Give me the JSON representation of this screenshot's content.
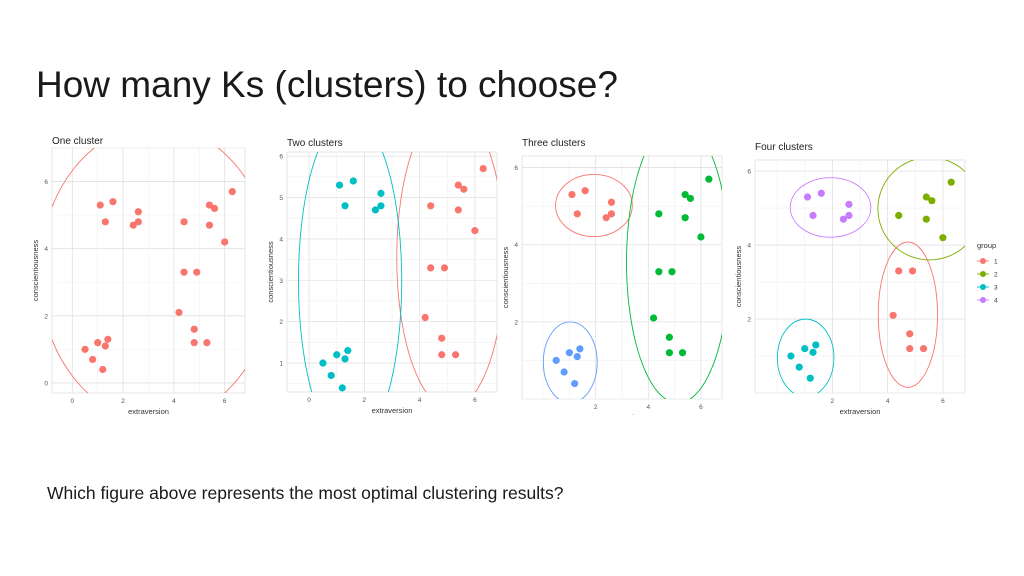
{
  "slide": {
    "title": "How many Ks (clusters) to choose?",
    "question": "Which figure above represents the most optimal clustering results?"
  },
  "chart_data": [
    {
      "type": "scatter",
      "title": "One cluster",
      "xlabel": "extraversion",
      "ylabel": "conscientiousness",
      "xlim": [
        -0.8,
        6.8
      ],
      "ylim": [
        -0.3,
        7.0
      ],
      "xticks": [
        0,
        2,
        4,
        6
      ],
      "yticks": [
        0,
        2,
        4,
        6
      ],
      "legend": false,
      "points": [
        {
          "x": 0.5,
          "y": 1.0,
          "group": 1
        },
        {
          "x": 0.8,
          "y": 0.7,
          "group": 1
        },
        {
          "x": 1.0,
          "y": 1.2,
          "group": 1
        },
        {
          "x": 1.2,
          "y": 0.4,
          "group": 1
        },
        {
          "x": 1.3,
          "y": 1.1,
          "group": 1
        },
        {
          "x": 1.4,
          "y": 1.3,
          "group": 1
        },
        {
          "x": 1.1,
          "y": 5.3,
          "group": 1
        },
        {
          "x": 1.3,
          "y": 4.8,
          "group": 1
        },
        {
          "x": 1.6,
          "y": 5.4,
          "group": 1
        },
        {
          "x": 2.4,
          "y": 4.7,
          "group": 1
        },
        {
          "x": 2.6,
          "y": 5.1,
          "group": 1
        },
        {
          "x": 2.6,
          "y": 4.8,
          "group": 1
        },
        {
          "x": 4.2,
          "y": 2.1,
          "group": 1
        },
        {
          "x": 4.4,
          "y": 3.3,
          "group": 1
        },
        {
          "x": 4.9,
          "y": 3.3,
          "group": 1
        },
        {
          "x": 4.8,
          "y": 1.6,
          "group": 1
        },
        {
          "x": 4.8,
          "y": 1.2,
          "group": 1
        },
        {
          "x": 5.3,
          "y": 1.2,
          "group": 1
        },
        {
          "x": 4.4,
          "y": 4.8,
          "group": 1
        },
        {
          "x": 5.4,
          "y": 5.3,
          "group": 1
        },
        {
          "x": 5.6,
          "y": 5.2,
          "group": 1
        },
        {
          "x": 5.4,
          "y": 4.7,
          "group": 1
        },
        {
          "x": 6.0,
          "y": 4.2,
          "group": 1
        },
        {
          "x": 6.3,
          "y": 5.7,
          "group": 1
        }
      ]
    },
    {
      "type": "scatter",
      "title": "Two clusters",
      "xlabel": "extraversion",
      "ylabel": "conscientiousness",
      "xlim": [
        -0.8,
        6.8
      ],
      "ylim": [
        0.3,
        6.1
      ],
      "xticks": [
        0,
        2,
        4,
        6
      ],
      "yticks": [
        1,
        2,
        3,
        4,
        5,
        6
      ],
      "legend": false,
      "points": [
        {
          "x": 0.5,
          "y": 1.0,
          "group": 3
        },
        {
          "x": 0.8,
          "y": 0.7,
          "group": 3
        },
        {
          "x": 1.0,
          "y": 1.2,
          "group": 3
        },
        {
          "x": 1.2,
          "y": 0.4,
          "group": 3
        },
        {
          "x": 1.3,
          "y": 1.1,
          "group": 3
        },
        {
          "x": 1.4,
          "y": 1.3,
          "group": 3
        },
        {
          "x": 1.1,
          "y": 5.3,
          "group": 3
        },
        {
          "x": 1.3,
          "y": 4.8,
          "group": 3
        },
        {
          "x": 1.6,
          "y": 5.4,
          "group": 3
        },
        {
          "x": 2.4,
          "y": 4.7,
          "group": 3
        },
        {
          "x": 2.6,
          "y": 5.1,
          "group": 3
        },
        {
          "x": 2.6,
          "y": 4.8,
          "group": 3
        },
        {
          "x": 4.2,
          "y": 2.1,
          "group": 1
        },
        {
          "x": 4.4,
          "y": 3.3,
          "group": 1
        },
        {
          "x": 4.9,
          "y": 3.3,
          "group": 1
        },
        {
          "x": 4.8,
          "y": 1.6,
          "group": 1
        },
        {
          "x": 4.8,
          "y": 1.2,
          "group": 1
        },
        {
          "x": 5.3,
          "y": 1.2,
          "group": 1
        },
        {
          "x": 4.4,
          "y": 4.8,
          "group": 1
        },
        {
          "x": 5.4,
          "y": 5.3,
          "group": 1
        },
        {
          "x": 5.6,
          "y": 5.2,
          "group": 1
        },
        {
          "x": 5.4,
          "y": 4.7,
          "group": 1
        },
        {
          "x": 6.0,
          "y": 4.2,
          "group": 1
        },
        {
          "x": 6.3,
          "y": 5.7,
          "group": 1
        }
      ]
    },
    {
      "type": "scatter",
      "title": "Three clusters",
      "xlabel": "extraversion",
      "ylabel": "conscientiousness",
      "xlim": [
        -0.8,
        6.8
      ],
      "ylim": [
        0.0,
        6.3
      ],
      "xticks": [
        2,
        4,
        6
      ],
      "yticks": [
        2,
        4,
        6
      ],
      "legend": false,
      "points": [
        {
          "x": 0.5,
          "y": 1.0,
          "group": 3
        },
        {
          "x": 0.8,
          "y": 0.7,
          "group": 3
        },
        {
          "x": 1.0,
          "y": 1.2,
          "group": 3
        },
        {
          "x": 1.2,
          "y": 0.4,
          "group": 3
        },
        {
          "x": 1.3,
          "y": 1.1,
          "group": 3
        },
        {
          "x": 1.4,
          "y": 1.3,
          "group": 3
        },
        {
          "x": 1.1,
          "y": 5.3,
          "group": 1
        },
        {
          "x": 1.3,
          "y": 4.8,
          "group": 1
        },
        {
          "x": 1.6,
          "y": 5.4,
          "group": 1
        },
        {
          "x": 2.4,
          "y": 4.7,
          "group": 1
        },
        {
          "x": 2.6,
          "y": 5.1,
          "group": 1
        },
        {
          "x": 2.6,
          "y": 4.8,
          "group": 1
        },
        {
          "x": 4.2,
          "y": 2.1,
          "group": 2
        },
        {
          "x": 4.4,
          "y": 3.3,
          "group": 2
        },
        {
          "x": 4.9,
          "y": 3.3,
          "group": 2
        },
        {
          "x": 4.8,
          "y": 1.6,
          "group": 2
        },
        {
          "x": 4.8,
          "y": 1.2,
          "group": 2
        },
        {
          "x": 5.3,
          "y": 1.2,
          "group": 2
        },
        {
          "x": 4.4,
          "y": 4.8,
          "group": 2
        },
        {
          "x": 5.4,
          "y": 5.3,
          "group": 2
        },
        {
          "x": 5.6,
          "y": 5.2,
          "group": 2
        },
        {
          "x": 5.4,
          "y": 4.7,
          "group": 2
        },
        {
          "x": 6.0,
          "y": 4.2,
          "group": 2
        },
        {
          "x": 6.3,
          "y": 5.7,
          "group": 2
        }
      ]
    },
    {
      "type": "scatter",
      "title": "Four clusters",
      "xlabel": "extraversion",
      "ylabel": "conscientiousness",
      "xlim": [
        -0.8,
        6.8
      ],
      "ylim": [
        0.0,
        6.3
      ],
      "xticks": [
        2,
        4,
        6
      ],
      "yticks": [
        2,
        4,
        6
      ],
      "legend": true,
      "legend_title": "group",
      "legend_position": "right",
      "legend_items": [
        {
          "label": "1",
          "color": "#F8766D"
        },
        {
          "label": "2",
          "color": "#7CAE00"
        },
        {
          "label": "3",
          "color": "#00BFC4"
        },
        {
          "label": "4",
          "color": "#C77CFF"
        }
      ],
      "points": [
        {
          "x": 0.5,
          "y": 1.0,
          "group": 3
        },
        {
          "x": 0.8,
          "y": 0.7,
          "group": 3
        },
        {
          "x": 1.0,
          "y": 1.2,
          "group": 3
        },
        {
          "x": 1.2,
          "y": 0.4,
          "group": 3
        },
        {
          "x": 1.3,
          "y": 1.1,
          "group": 3
        },
        {
          "x": 1.4,
          "y": 1.3,
          "group": 3
        },
        {
          "x": 1.1,
          "y": 5.3,
          "group": 4
        },
        {
          "x": 1.3,
          "y": 4.8,
          "group": 4
        },
        {
          "x": 1.6,
          "y": 5.4,
          "group": 4
        },
        {
          "x": 2.4,
          "y": 4.7,
          "group": 4
        },
        {
          "x": 2.6,
          "y": 5.1,
          "group": 4
        },
        {
          "x": 2.6,
          "y": 4.8,
          "group": 4
        },
        {
          "x": 4.2,
          "y": 2.1,
          "group": 1
        },
        {
          "x": 4.4,
          "y": 3.3,
          "group": 1
        },
        {
          "x": 4.9,
          "y": 3.3,
          "group": 1
        },
        {
          "x": 4.8,
          "y": 1.6,
          "group": 1
        },
        {
          "x": 4.8,
          "y": 1.2,
          "group": 1
        },
        {
          "x": 5.3,
          "y": 1.2,
          "group": 1
        },
        {
          "x": 4.4,
          "y": 4.8,
          "group": 2
        },
        {
          "x": 5.4,
          "y": 5.3,
          "group": 2
        },
        {
          "x": 5.6,
          "y": 5.2,
          "group": 2
        },
        {
          "x": 5.4,
          "y": 4.7,
          "group": 2
        },
        {
          "x": 6.0,
          "y": 4.2,
          "group": 2
        },
        {
          "x": 6.3,
          "y": 5.7,
          "group": 2
        }
      ]
    }
  ],
  "group_colors": {
    "1": "#F8766D",
    "2": "#7CAE00",
    "3": "#00BFC4",
    "4": "#C77CFF",
    "blue": "#619CFF",
    "green": "#00BA38"
  }
}
